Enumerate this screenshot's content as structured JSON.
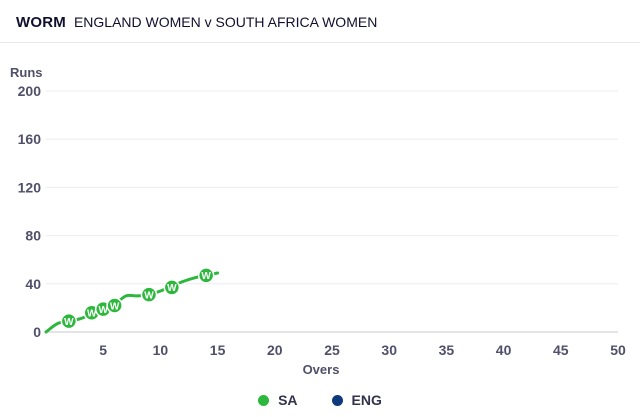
{
  "header": {
    "label": "WORM",
    "match": "ENGLAND WOMEN v SOUTH AFRICA WOMEN"
  },
  "chart_data": {
    "type": "line",
    "title": "",
    "xlabel": "Overs",
    "ylabel": "Runs",
    "xlim": [
      0,
      50
    ],
    "ylim": [
      0,
      200
    ],
    "x_ticks": [
      5,
      10,
      15,
      20,
      25,
      30,
      35,
      40,
      45,
      50
    ],
    "y_ticks": [
      0,
      40,
      80,
      120,
      160,
      200
    ],
    "grid": true,
    "legend_position": "bottom-center",
    "series": [
      {
        "name": "SA",
        "color": "#2db83d",
        "points": [
          [
            0,
            0
          ],
          [
            1,
            7
          ],
          [
            2,
            9
          ],
          [
            3,
            11
          ],
          [
            4,
            15
          ],
          [
            5,
            19
          ],
          [
            6,
            23
          ],
          [
            7,
            30
          ],
          [
            8,
            30
          ],
          [
            9,
            31
          ],
          [
            10,
            34
          ],
          [
            11,
            38
          ],
          [
            12,
            42
          ],
          [
            13,
            45
          ],
          [
            14,
            47
          ],
          [
            15,
            49
          ]
        ],
        "wickets": [
          {
            "over": 2,
            "runs": 9,
            "label": "W"
          },
          {
            "over": 4,
            "runs": 16,
            "label": "W"
          },
          {
            "over": 5,
            "runs": 19,
            "label": "W"
          },
          {
            "over": 6,
            "runs": 22,
            "label": "W"
          },
          {
            "over": 9,
            "runs": 31,
            "label": "W"
          },
          {
            "over": 11,
            "runs": 37,
            "label": "W"
          },
          {
            "over": 14,
            "runs": 47,
            "label": "W"
          }
        ]
      },
      {
        "name": "ENG",
        "color": "#0e3a7d",
        "points": [],
        "wickets": []
      }
    ]
  }
}
